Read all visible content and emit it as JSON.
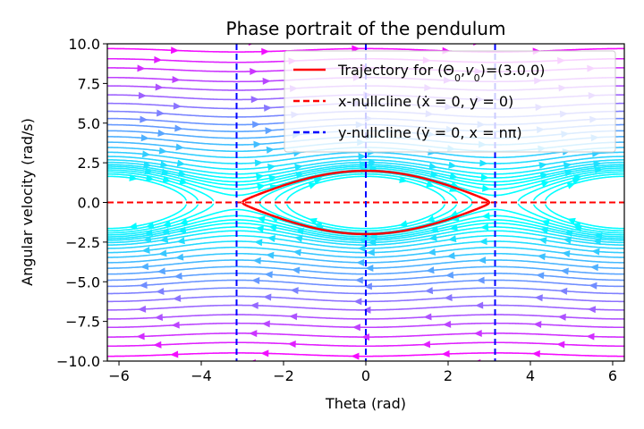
{
  "chart_data": {
    "type": "streamplot",
    "title": "Phase portrait of the pendulum",
    "xlabel": "Theta (rad)",
    "ylabel": "Angular velocity (rad/s)",
    "xlim": [
      -6.2832,
      6.2832
    ],
    "ylim": [
      -10,
      10
    ],
    "xticks": [
      -6,
      -4,
      -2,
      0,
      2,
      4,
      6
    ],
    "xtick_labels": [
      "−6",
      "−4",
      "−2",
      "0",
      "2",
      "4",
      "6"
    ],
    "yticks": [
      -10,
      -7.5,
      -5,
      -2.5,
      0,
      2.5,
      5,
      7.5,
      10
    ],
    "ytick_labels": [
      "−10.0",
      "−7.5",
      "−5.0",
      "−2.5",
      "0.0",
      "2.5",
      "5.0",
      "7.5",
      "10.0"
    ],
    "grid": false,
    "legend_position": "top-right",
    "colormap": [
      "#00ffff",
      "#ff00ff"
    ],
    "stream_energy_levels": [
      0.35,
      0.6,
      0.85,
      1.1,
      1.35,
      1.6,
      1.85,
      2.2,
      2.6,
      3.2,
      4.0,
      5.0,
      6.2,
      7.6,
      9.2,
      11.0,
      13.0,
      15.5,
      18.5,
      22,
      26,
      30,
      35,
      40,
      46,
      52
    ],
    "series": [
      {
        "name": "Trajectory for (Θ₀,v₀)=(3.0,0)",
        "legend_html": "Trajectory for (Θ<tspan baseline-shift='sub' font-size='11'>0</tspan>,<tspan font-style='italic'>v</tspan><tspan baseline-shift='sub' font-size='11'>0</tspan>)=(3.0,0)",
        "kind": "trajectory",
        "theta0": 3.0,
        "v0": 0,
        "color": "#ff0000"
      },
      {
        "name": "x-nullcline (ẋ = 0, y = 0)",
        "kind": "hline",
        "y": 0,
        "color": "#ff0000",
        "dash": true
      },
      {
        "name": "y-nullcline (ẏ = 0, x = nπ)",
        "kind": "vlines",
        "x": [
          -3.1416,
          0,
          3.1416
        ],
        "color": "#0000ff",
        "dash": true
      }
    ]
  }
}
